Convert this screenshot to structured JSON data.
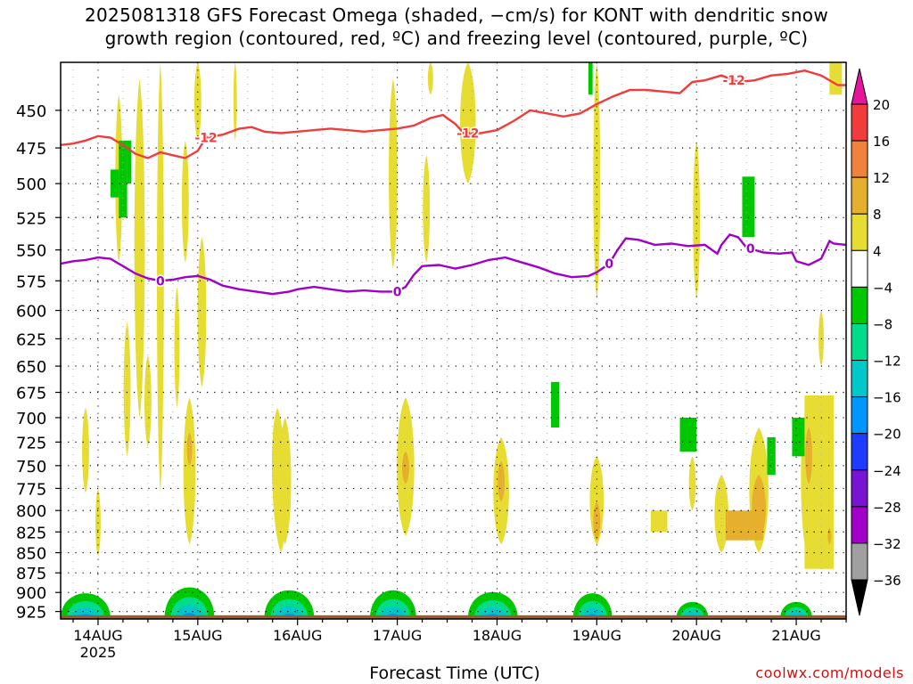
{
  "title_line1": "2025081318 GFS Forecast Omega (shaded, −cm/s) for KONT with dendritic snow",
  "title_line2": "growth region (contoured, red, ºC) and freezing level (contoured, purple, ºC)",
  "xlabel": "Forecast Time (UTC)",
  "credit": "coolwx.com/models",
  "chart_data": {
    "type": "heatmap",
    "title": "2025081318 GFS Forecast Omega (shaded, −cm/s) for KONT with dendritic snow growth region (contoured, red, ºC) and freezing level (contoured, purple, ºC)",
    "xlabel": "Forecast Time (UTC)",
    "ylabel": "",
    "x_range_hours": [
      -9,
      180
    ],
    "y_range_hpa": [
      935,
      420
    ],
    "y_scale": "log-pressure",
    "grid": true,
    "x_ticks": [
      {
        "hour": 0,
        "label": "14AUG",
        "sublabel": "2025"
      },
      {
        "hour": 24,
        "label": "15AUG",
        "sublabel": ""
      },
      {
        "hour": 48,
        "label": "16AUG",
        "sublabel": ""
      },
      {
        "hour": 72,
        "label": "17AUG",
        "sublabel": ""
      },
      {
        "hour": 96,
        "label": "18AUG",
        "sublabel": ""
      },
      {
        "hour": 120,
        "label": "19AUG",
        "sublabel": ""
      },
      {
        "hour": 144,
        "label": "20AUG",
        "sublabel": ""
      },
      {
        "hour": 168,
        "label": "21AUG",
        "sublabel": ""
      }
    ],
    "y_ticks": [
      450,
      475,
      500,
      525,
      550,
      575,
      600,
      625,
      650,
      675,
      700,
      725,
      750,
      775,
      800,
      825,
      850,
      875,
      900,
      925
    ],
    "colorbar": {
      "labels": [
        "20",
        "16",
        "12",
        "8",
        "4",
        "−4",
        "−8",
        "−12",
        "−16",
        "−20",
        "−24",
        "−28",
        "−32",
        "−36"
      ],
      "bins": [
        {
          "range": [
            16,
            20
          ],
          "color": "#f03c3c"
        },
        {
          "range": [
            12,
            16
          ],
          "color": "#f0823c"
        },
        {
          "range": [
            8,
            12
          ],
          "color": "#e6af2d"
        },
        {
          "range": [
            4,
            8
          ],
          "color": "#e6dc32"
        },
        {
          "range": [
            -4,
            4
          ],
          "color": "#ffffff"
        },
        {
          "range": [
            -8,
            -4
          ],
          "color": "#00c800"
        },
        {
          "range": [
            -12,
            -8
          ],
          "color": "#00dc8c"
        },
        {
          "range": [
            -16,
            -12
          ],
          "color": "#00c8c8"
        },
        {
          "range": [
            -20,
            -16
          ],
          "color": "#0096ff"
        },
        {
          "range": [
            -24,
            -20
          ],
          "color": "#1e3cff"
        },
        {
          "range": [
            -28,
            -24
          ],
          "color": "#7814d2"
        },
        {
          "range": [
            -32,
            -28
          ],
          "color": "#a000c8"
        },
        {
          "range": [
            -36,
            -32
          ],
          "color": "#a0a0a0"
        }
      ],
      "over_color": "#e6149b",
      "under_color": "#000000"
    },
    "series": [
      {
        "name": "-12",
        "color": "#f03c3c",
        "points": [
          [
            -9,
            473
          ],
          [
            -6,
            472
          ],
          [
            -3,
            470
          ],
          [
            0,
            467
          ],
          [
            3,
            468
          ],
          [
            6,
            473
          ],
          [
            9,
            479
          ],
          [
            12,
            482
          ],
          [
            15,
            478
          ],
          [
            18,
            480
          ],
          [
            21,
            482
          ],
          [
            24,
            477
          ],
          [
            26,
            468
          ],
          [
            30,
            466
          ],
          [
            34,
            462
          ],
          [
            37,
            461
          ],
          [
            40,
            464
          ],
          [
            44,
            465
          ],
          [
            48,
            464
          ],
          [
            52,
            463
          ],
          [
            56,
            462
          ],
          [
            60,
            463
          ],
          [
            64,
            464
          ],
          [
            68,
            463
          ],
          [
            72,
            462
          ],
          [
            76,
            460
          ],
          [
            80,
            455
          ],
          [
            83,
            453
          ],
          [
            86,
            459
          ],
          [
            88,
            465
          ],
          [
            92,
            465
          ],
          [
            96,
            463
          ],
          [
            100,
            457
          ],
          [
            104,
            450
          ],
          [
            108,
            452
          ],
          [
            112,
            454
          ],
          [
            116,
            452
          ],
          [
            120,
            446
          ],
          [
            124,
            441
          ],
          [
            128,
            437
          ],
          [
            132,
            437
          ],
          [
            136,
            438
          ],
          [
            140,
            439
          ],
          [
            143,
            432
          ],
          [
            146,
            431
          ],
          [
            150,
            428
          ],
          [
            154,
            432
          ],
          [
            158,
            431
          ],
          [
            162,
            428
          ],
          [
            166,
            427
          ],
          [
            170,
            425
          ],
          [
            174,
            428
          ],
          [
            178,
            434
          ],
          [
            180,
            434
          ]
        ],
        "labels_at_hours": [
          26,
          89,
          153
        ]
      },
      {
        "name": "0",
        "color": "#a000c8",
        "points": [
          [
            -9,
            561
          ],
          [
            -6,
            559
          ],
          [
            -3,
            558
          ],
          [
            0,
            556
          ],
          [
            3,
            557
          ],
          [
            6,
            563
          ],
          [
            9,
            569
          ],
          [
            12,
            573
          ],
          [
            15,
            575
          ],
          [
            18,
            574
          ],
          [
            21,
            572
          ],
          [
            24,
            571
          ],
          [
            27,
            574
          ],
          [
            30,
            579
          ],
          [
            34,
            582
          ],
          [
            38,
            584
          ],
          [
            42,
            586
          ],
          [
            46,
            584
          ],
          [
            48,
            582
          ],
          [
            52,
            580
          ],
          [
            56,
            582
          ],
          [
            60,
            584
          ],
          [
            64,
            583
          ],
          [
            68,
            584
          ],
          [
            72,
            584
          ],
          [
            74,
            580
          ],
          [
            76,
            570
          ],
          [
            78,
            563
          ],
          [
            82,
            562
          ],
          [
            86,
            565
          ],
          [
            90,
            562
          ],
          [
            94,
            558
          ],
          [
            98,
            556
          ],
          [
            102,
            560
          ],
          [
            106,
            564
          ],
          [
            110,
            569
          ],
          [
            114,
            572
          ],
          [
            118,
            571
          ],
          [
            120,
            568
          ],
          [
            123,
            561
          ],
          [
            125,
            550
          ],
          [
            127,
            541
          ],
          [
            130,
            542
          ],
          [
            134,
            546
          ],
          [
            138,
            545
          ],
          [
            142,
            547
          ],
          [
            146,
            546
          ],
          [
            149,
            553
          ],
          [
            150,
            546
          ],
          [
            152,
            538
          ],
          [
            154,
            540
          ],
          [
            156,
            548
          ],
          [
            160,
            552
          ],
          [
            164,
            553
          ],
          [
            167,
            552
          ],
          [
            168,
            559
          ],
          [
            171,
            562
          ],
          [
            174,
            557
          ],
          [
            176,
            543
          ],
          [
            177,
            545
          ],
          [
            180,
            546
          ]
        ],
        "labels_at_hours": [
          15,
          72,
          123,
          157
        ]
      }
    ]
  }
}
